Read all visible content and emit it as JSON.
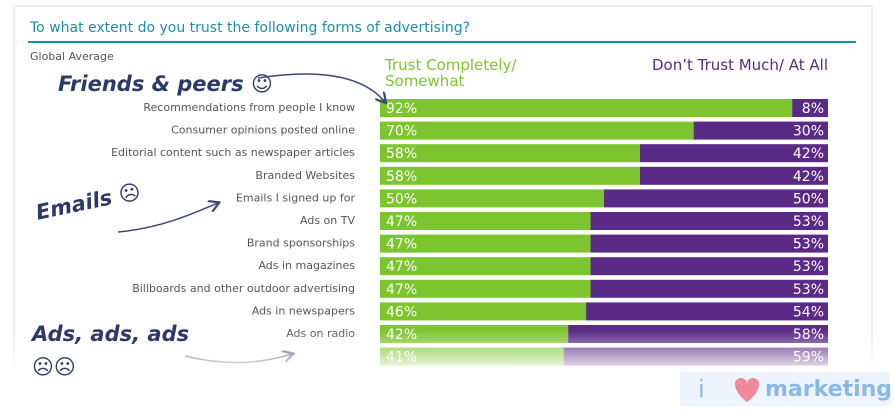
{
  "chart_data": {
    "type": "stacked-bar-horizontal",
    "title": "To what extent do you trust the following forms of advertising?",
    "subtitle": "Global Average",
    "categories": [
      "Recommendations from people I know",
      "Consumer opinions posted online",
      "Editorial content such as newspaper articles",
      "Branded Websites",
      "Emails I signed up for",
      "Ads on TV",
      "Brand sponsorships",
      "Ads in magazines",
      "Billboards and other outdoor advertising",
      "Ads in newspapers",
      "Ads on radio",
      null
    ],
    "series": [
      {
        "name": "Trust Completely/ Somewhat",
        "color": "#7dc52e",
        "values": [
          92,
          70,
          58,
          58,
          50,
          47,
          47,
          47,
          47,
          46,
          42,
          41
        ],
        "value_labels": [
          "92%",
          "70%",
          "58%",
          "58%",
          "50%",
          "47%",
          "47%",
          "47%",
          "47%",
          "46%",
          "42%",
          "41%"
        ]
      },
      {
        "name": "Don’t Trust Much/ At All",
        "color": "#5a2a86",
        "values": [
          8,
          30,
          42,
          42,
          50,
          53,
          53,
          53,
          53,
          54,
          58,
          59
        ],
        "value_labels": [
          "8%",
          "30%",
          "42%",
          "42%",
          "50%",
          "53%",
          "53%",
          "53%",
          "53%",
          "54%",
          "58%",
          "59%"
        ]
      }
    ],
    "annotations": [
      "Friends & peers ☺",
      "Emails ☹",
      "Ads, ads, ads",
      "☹☹"
    ],
    "watermark": [
      "i",
      "marketing"
    ]
  }
}
